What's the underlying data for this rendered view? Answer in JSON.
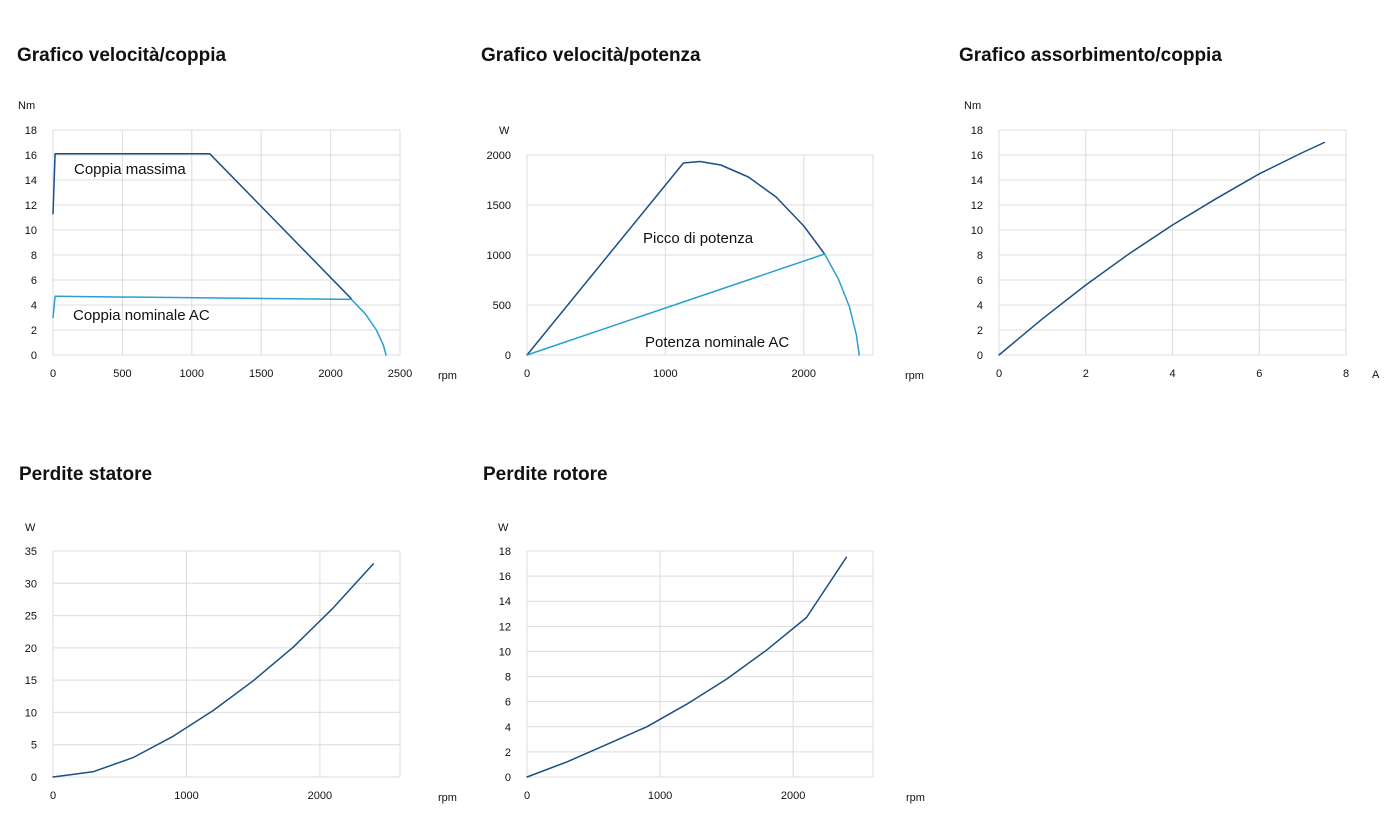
{
  "colors": {
    "dark_line": "#1b4f85",
    "light_line": "#2a9fd0",
    "grid": "#dcdcdc",
    "text": "#111111"
  },
  "chart_data": [
    {
      "type": "line",
      "title": "Grafico velocità/coppia",
      "xlabel": "rpm",
      "ylabel": "Nm",
      "xlim": [
        0,
        2500
      ],
      "ylim": [
        0,
        18
      ],
      "xticks": [
        "0",
        "500",
        "1000",
        "1500",
        "2000",
        "2500"
      ],
      "yticks": [
        "0",
        "2",
        "4",
        "6",
        "8",
        "10",
        "12",
        "14",
        "16",
        "18"
      ],
      "grid": true,
      "series": [
        {
          "name": "Coppia massima",
          "color": "#1b4f85",
          "x": [
            0,
            15,
            1130,
            2150
          ],
          "y": [
            11.3,
            16.1,
            16.1,
            4.5
          ]
        },
        {
          "name": "Coppia nominale AC",
          "color": "#2a9fd0",
          "x": [
            0,
            15,
            2150
          ],
          "y": [
            3.0,
            4.7,
            4.45
          ]
        },
        {
          "name": "",
          "color": "#2a9fd0",
          "x": [
            2150,
            2250,
            2330,
            2380,
            2400
          ],
          "y": [
            4.45,
            3.3,
            2.0,
            0.8,
            0
          ]
        }
      ],
      "annotations": [
        "Coppia massima",
        "Coppia nominale AC"
      ]
    },
    {
      "type": "line",
      "title": "Grafico velocità/potenza",
      "xlabel": "rpm",
      "ylabel": "W",
      "xlim": [
        0,
        2500
      ],
      "ylim": [
        0,
        2000
      ],
      "xticks": [
        "0",
        "1000",
        "2000"
      ],
      "yticks": [
        "0",
        "500",
        "1000",
        "1500",
        "2000"
      ],
      "grid": true,
      "series": [
        {
          "name": "Picco di potenza",
          "color": "#1b4f85",
          "x": [
            0,
            1130,
            1250,
            1400,
            1600,
            1800,
            2000,
            2150
          ],
          "y": [
            0,
            1920,
            1935,
            1900,
            1780,
            1580,
            1290,
            1010
          ]
        },
        {
          "name": "Potenza nominale AC",
          "color": "#2a9fd0",
          "x": [
            0,
            2150
          ],
          "y": [
            0,
            1010
          ]
        },
        {
          "name": "",
          "color": "#2a9fd0",
          "x": [
            2150,
            2250,
            2330,
            2380,
            2400
          ],
          "y": [
            1010,
            760,
            480,
            200,
            0
          ]
        }
      ],
      "annotations": [
        "Picco di potenza",
        "Potenza nominale AC"
      ]
    },
    {
      "type": "line",
      "title": "Grafico assorbimento/coppia",
      "xlabel": "A",
      "ylabel": "Nm",
      "xlim": [
        0,
        8
      ],
      "ylim": [
        0,
        18
      ],
      "xticks": [
        "0",
        "2",
        "4",
        "6",
        "8"
      ],
      "yticks": [
        "0",
        "2",
        "4",
        "6",
        "8",
        "10",
        "12",
        "14",
        "16",
        "18"
      ],
      "grid": true,
      "series": [
        {
          "name": "",
          "color": "#1b4f85",
          "x": [
            0,
            1,
            2,
            3,
            4,
            5,
            6,
            7,
            7.5
          ],
          "y": [
            0,
            2.9,
            5.6,
            8.1,
            10.4,
            12.5,
            14.5,
            16.2,
            17
          ]
        }
      ],
      "annotations": []
    },
    {
      "type": "line",
      "title": "Perdite statore",
      "xlabel": "rpm",
      "ylabel": "W",
      "xlim": [
        0,
        2600
      ],
      "ylim": [
        0,
        35
      ],
      "xticks": [
        "0",
        "1000",
        "2000"
      ],
      "yticks": [
        "0",
        "5",
        "10",
        "15",
        "20",
        "25",
        "30",
        "35"
      ],
      "grid": true,
      "series": [
        {
          "name": "",
          "color": "#1b4f85",
          "x": [
            0,
            300,
            600,
            900,
            1200,
            1500,
            1800,
            2100,
            2400
          ],
          "y": [
            0,
            0.8,
            3.0,
            6.3,
            10.3,
            14.9,
            20.1,
            26.2,
            33.0
          ]
        }
      ],
      "annotations": []
    },
    {
      "type": "line",
      "title": "Perdite rotore",
      "xlabel": "rpm",
      "ylabel": "W",
      "xlim": [
        0,
        2600
      ],
      "ylim": [
        0,
        18
      ],
      "xticks": [
        "0",
        "1000",
        "2000"
      ],
      "yticks": [
        "0",
        "2",
        "4",
        "6",
        "8",
        "10",
        "12",
        "14",
        "16",
        "18"
      ],
      "grid": true,
      "series": [
        {
          "name": "",
          "color": "#1b4f85",
          "x": [
            0,
            300,
            600,
            900,
            1200,
            1500,
            1800,
            2100,
            2400
          ],
          "y": [
            0,
            1.2,
            2.6,
            4.0,
            5.8,
            7.8,
            10.1,
            12.7,
            17.5
          ]
        }
      ],
      "annotations": []
    }
  ]
}
